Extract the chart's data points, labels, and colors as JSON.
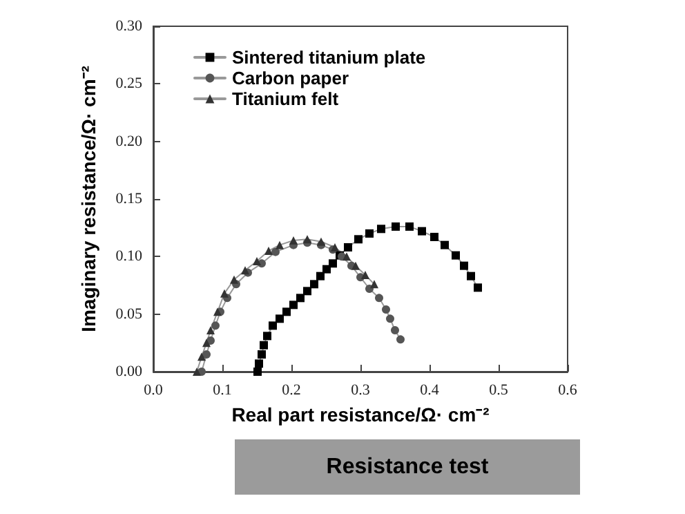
{
  "chart_data": {
    "type": "line",
    "xlabel": "Real part resistance/Ω· cm⁻²",
    "ylabel": "Imaginary resistance/Ω· cm⁻²",
    "xlim": [
      0,
      0.6
    ],
    "ylim": [
      0,
      0.3
    ],
    "xticks": [
      {
        "value": 0,
        "label": "0.0"
      },
      0.1,
      0.2,
      0.3,
      0.4,
      0.5,
      0.6
    ],
    "yticks": [
      {
        "value": 0,
        "label": "0.00"
      },
      0.05,
      {
        "value": 0.1,
        "label": "0.10"
      },
      0.15,
      {
        "value": 0.2,
        "label": "0.20"
      },
      0.25,
      {
        "value": 0.3,
        "label": "0.30"
      }
    ],
    "grid": false,
    "legend": "top left",
    "annotations": [
      "Resistance test"
    ],
    "series": [
      {
        "name": "Sintered titanium plate",
        "color": "#000000",
        "marker": "square",
        "x": [
          0.151,
          0.153,
          0.157,
          0.16,
          0.165,
          0.173,
          0.183,
          0.193,
          0.203,
          0.213,
          0.223,
          0.233,
          0.242,
          0.251,
          0.26,
          0.27,
          0.282,
          0.297,
          0.313,
          0.33,
          0.351,
          0.371,
          0.389,
          0.407,
          0.422,
          0.438,
          0.45,
          0.46,
          0.47
        ],
        "values": [
          0,
          0.007,
          0.015,
          0.023,
          0.031,
          0.04,
          0.046,
          0.052,
          0.058,
          0.064,
          0.07,
          0.076,
          0.083,
          0.089,
          0.094,
          0.101,
          0.108,
          0.115,
          0.12,
          0.124,
          0.126,
          0.126,
          0.122,
          0.117,
          0.11,
          0.101,
          0.092,
          0.083,
          0.073
        ]
      },
      {
        "name": "Carbon paper",
        "color": "#555555",
        "marker": "circle",
        "x": [
          0.07,
          0.077,
          0.083,
          0.09,
          0.097,
          0.107,
          0.12,
          0.137,
          0.157,
          0.177,
          0.203,
          0.223,
          0.243,
          0.26,
          0.273,
          0.287,
          0.3,
          0.313,
          0.327,
          0.337,
          0.343,
          0.35,
          0.358
        ],
        "values": [
          0,
          0.015,
          0.027,
          0.04,
          0.052,
          0.064,
          0.076,
          0.086,
          0.094,
          0.104,
          0.11,
          0.112,
          0.11,
          0.106,
          0.1,
          0.092,
          0.082,
          0.072,
          0.064,
          0.054,
          0.046,
          0.036,
          0.028
        ]
      },
      {
        "name": "Titanium felt",
        "color": "#333333",
        "marker": "triangle",
        "x": [
          0.063,
          0.07,
          0.077,
          0.083,
          0.093,
          0.103,
          0.117,
          0.133,
          0.15,
          0.167,
          0.183,
          0.203,
          0.223,
          0.243,
          0.263,
          0.28,
          0.293,
          0.307,
          0.32
        ],
        "values": [
          0,
          0.013,
          0.025,
          0.036,
          0.052,
          0.068,
          0.08,
          0.088,
          0.096,
          0.105,
          0.11,
          0.114,
          0.115,
          0.113,
          0.108,
          0.1,
          0.092,
          0.084,
          0.076
        ]
      }
    ]
  }
}
